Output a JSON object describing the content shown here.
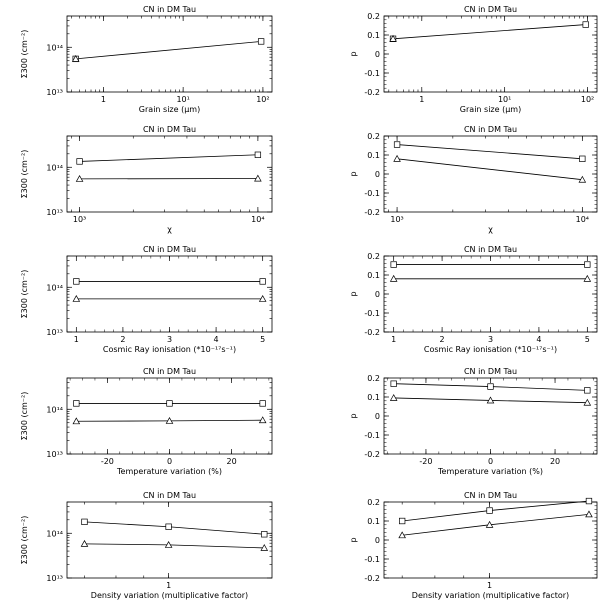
{
  "chart_data": [
    {
      "type": "line",
      "title": "CN in DM Tau",
      "xlabel": "Grain size (μm)",
      "ylabel": "Σ300 (cm⁻²)",
      "xscale": "log",
      "yscale": "log",
      "xlim": [
        0.35,
        130
      ],
      "ylim": [
        10000000000000.0,
        500000000000000.0
      ],
      "xticks": [
        {
          "v": 1,
          "label": "1"
        },
        {
          "v": 10,
          "label": "10¹"
        },
        {
          "v": 100,
          "label": "10²"
        }
      ],
      "yticks": [
        {
          "v": 10000000000000.0,
          "label": "10¹³"
        },
        {
          "v": 100000000000000.0,
          "label": "10¹⁴"
        }
      ],
      "series": [
        {
          "marker": "square",
          "points": [
            [
              0.45,
              55000000000000.0
            ],
            [
              95,
              135000000000000.0
            ]
          ]
        },
        {
          "marker": "triangle",
          "points": [
            [
              0.45,
              55000000000000.0
            ]
          ]
        }
      ]
    },
    {
      "type": "line",
      "title": "CN in DM Tau",
      "xlabel": "Grain size (μm)",
      "ylabel": "p",
      "xscale": "log",
      "yscale": "linear",
      "xlim": [
        0.35,
        130
      ],
      "ylim": [
        -0.2,
        0.2
      ],
      "xticks": [
        {
          "v": 1,
          "label": "1"
        },
        {
          "v": 10,
          "label": "10¹"
        },
        {
          "v": 100,
          "label": "10²"
        }
      ],
      "yticks": [
        {
          "v": -0.2,
          "label": "-0.2"
        },
        {
          "v": -0.1,
          "label": "-0.1"
        },
        {
          "v": 0,
          "label": "0"
        },
        {
          "v": 0.1,
          "label": "0.1"
        },
        {
          "v": 0.2,
          "label": "0.2"
        }
      ],
      "series": [
        {
          "marker": "square",
          "points": [
            [
              0.45,
              0.08
            ],
            [
              95,
              0.155
            ]
          ]
        },
        {
          "marker": "triangle",
          "points": [
            [
              0.45,
              0.08
            ]
          ]
        }
      ]
    },
    {
      "type": "line",
      "title": "CN in DM Tau",
      "xlabel": "χ",
      "ylabel": "Σ300 (cm⁻²)",
      "xscale": "log",
      "yscale": "log",
      "xlim": [
        850,
        12000
      ],
      "ylim": [
        10000000000000.0,
        500000000000000.0
      ],
      "xticks": [
        {
          "v": 1000,
          "label": "10³"
        },
        {
          "v": 10000,
          "label": "10⁴"
        }
      ],
      "yticks": [
        {
          "v": 10000000000000.0,
          "label": "10¹³"
        },
        {
          "v": 100000000000000.0,
          "label": "10¹⁴"
        }
      ],
      "series": [
        {
          "marker": "square",
          "points": [
            [
              1000,
              135000000000000.0
            ],
            [
              10000,
              190000000000000.0
            ]
          ]
        },
        {
          "marker": "triangle",
          "points": [
            [
              1000,
              55000000000000.0
            ],
            [
              10000,
              56000000000000.0
            ]
          ]
        }
      ]
    },
    {
      "type": "line",
      "title": "CN in DM Tau",
      "xlabel": "χ",
      "ylabel": "p",
      "xscale": "log",
      "yscale": "linear",
      "xlim": [
        850,
        12000
      ],
      "ylim": [
        -0.2,
        0.2
      ],
      "xticks": [
        {
          "v": 1000,
          "label": "10³"
        },
        {
          "v": 10000,
          "label": "10⁴"
        }
      ],
      "yticks": [
        {
          "v": -0.2,
          "label": "-0.2"
        },
        {
          "v": -0.1,
          "label": "-0.1"
        },
        {
          "v": 0,
          "label": "0"
        },
        {
          "v": 0.1,
          "label": "0.1"
        },
        {
          "v": 0.2,
          "label": "0.2"
        }
      ],
      "series": [
        {
          "marker": "square",
          "points": [
            [
              1000,
              0.155
            ],
            [
              10000,
              0.08
            ]
          ]
        },
        {
          "marker": "triangle",
          "points": [
            [
              1000,
              0.08
            ],
            [
              10000,
              -0.03
            ]
          ]
        }
      ]
    },
    {
      "type": "line",
      "title": "CN in DM Tau",
      "xlabel": "Cosmic Ray ionisation (*10⁻¹⁷s⁻¹)",
      "ylabel": "Σ300 (cm⁻²)",
      "xscale": "linear",
      "yscale": "log",
      "xlim": [
        0.8,
        5.2
      ],
      "ylim": [
        10000000000000.0,
        500000000000000.0
      ],
      "xticks": [
        {
          "v": 1,
          "label": "1"
        },
        {
          "v": 2,
          "label": "2"
        },
        {
          "v": 3,
          "label": "3"
        },
        {
          "v": 4,
          "label": "4"
        },
        {
          "v": 5,
          "label": "5"
        }
      ],
      "yticks": [
        {
          "v": 10000000000000.0,
          "label": "10¹³"
        },
        {
          "v": 100000000000000.0,
          "label": "10¹⁴"
        }
      ],
      "series": [
        {
          "marker": "square",
          "points": [
            [
              1,
              135000000000000.0
            ],
            [
              5,
              135000000000000.0
            ]
          ]
        },
        {
          "marker": "triangle",
          "points": [
            [
              1,
              55000000000000.0
            ],
            [
              5,
              55000000000000.0
            ]
          ]
        }
      ]
    },
    {
      "type": "line",
      "title": "CN in DM Tau",
      "xlabel": "Cosmic Ray ionisation (*10⁻¹⁷s⁻¹)",
      "ylabel": "p",
      "xscale": "linear",
      "yscale": "linear",
      "xlim": [
        0.8,
        5.2
      ],
      "ylim": [
        -0.2,
        0.2
      ],
      "xticks": [
        {
          "v": 1,
          "label": "1"
        },
        {
          "v": 2,
          "label": "2"
        },
        {
          "v": 3,
          "label": "3"
        },
        {
          "v": 4,
          "label": "4"
        },
        {
          "v": 5,
          "label": "5"
        }
      ],
      "yticks": [
        {
          "v": -0.2,
          "label": "-0.2"
        },
        {
          "v": -0.1,
          "label": "-0.1"
        },
        {
          "v": 0,
          "label": "0"
        },
        {
          "v": 0.1,
          "label": "0.1"
        },
        {
          "v": 0.2,
          "label": "0.2"
        }
      ],
      "series": [
        {
          "marker": "square",
          "points": [
            [
              1,
              0.155
            ],
            [
              5,
              0.155
            ]
          ]
        },
        {
          "marker": "triangle",
          "points": [
            [
              1,
              0.08
            ],
            [
              5,
              0.08
            ]
          ]
        }
      ]
    },
    {
      "type": "line",
      "title": "CN in DM Tau",
      "xlabel": "Temperature variation (%)",
      "ylabel": "Σ300 (cm⁻²)",
      "xscale": "linear",
      "yscale": "log",
      "xlim": [
        -33,
        33
      ],
      "ylim": [
        10000000000000.0,
        500000000000000.0
      ],
      "xticks": [
        {
          "v": -20,
          "label": "-20"
        },
        {
          "v": 0,
          "label": "0"
        },
        {
          "v": 20,
          "label": "20"
        }
      ],
      "yticks": [
        {
          "v": 10000000000000.0,
          "label": "10¹³"
        },
        {
          "v": 100000000000000.0,
          "label": "10¹⁴"
        }
      ],
      "series": [
        {
          "marker": "square",
          "points": [
            [
              -30,
              135000000000000.0
            ],
            [
              0,
              135000000000000.0
            ],
            [
              30,
              135000000000000.0
            ]
          ]
        },
        {
          "marker": "triangle",
          "points": [
            [
              -30,
              54000000000000.0
            ],
            [
              0,
              55000000000000.0
            ],
            [
              30,
              57000000000000.0
            ]
          ]
        }
      ]
    },
    {
      "type": "line",
      "title": "CN in DM Tau",
      "xlabel": "Temperature variation (%)",
      "ylabel": "p",
      "xscale": "linear",
      "yscale": "linear",
      "xlim": [
        -33,
        33
      ],
      "ylim": [
        -0.2,
        0.2
      ],
      "xticks": [
        {
          "v": -20,
          "label": "-20"
        },
        {
          "v": 0,
          "label": "0"
        },
        {
          "v": 20,
          "label": "20"
        }
      ],
      "yticks": [
        {
          "v": -0.2,
          "label": "-0.2"
        },
        {
          "v": -0.1,
          "label": "-0.1"
        },
        {
          "v": 0,
          "label": "0"
        },
        {
          "v": 0.1,
          "label": "0.1"
        },
        {
          "v": 0.2,
          "label": "0.2"
        }
      ],
      "series": [
        {
          "marker": "square",
          "points": [
            [
              -30,
              0.17
            ],
            [
              0,
              0.155
            ],
            [
              30,
              0.135
            ]
          ]
        },
        {
          "marker": "triangle",
          "points": [
            [
              -30,
              0.095
            ],
            [
              0,
              0.082
            ],
            [
              30,
              0.07
            ]
          ]
        }
      ]
    },
    {
      "type": "line",
      "title": "CN in DM Tau",
      "xlabel": "Density variation (multiplicative factor)",
      "ylabel": "Σ300 (cm⁻²)",
      "xscale": "log",
      "yscale": "log",
      "xlim": [
        0.65,
        1.55
      ],
      "ylim": [
        10000000000000.0,
        500000000000000.0
      ],
      "xticks": [
        {
          "v": 1,
          "label": "1"
        }
      ],
      "yticks": [
        {
          "v": 10000000000000.0,
          "label": "10¹³"
        },
        {
          "v": 100000000000000.0,
          "label": "10¹⁴"
        }
      ],
      "series": [
        {
          "marker": "square",
          "points": [
            [
              0.7,
              180000000000000.0
            ],
            [
              1,
              140000000000000.0
            ],
            [
              1.5,
              95000000000000.0
            ]
          ]
        },
        {
          "marker": "triangle",
          "points": [
            [
              0.7,
              58000000000000.0
            ],
            [
              1,
              55000000000000.0
            ],
            [
              1.5,
              47000000000000.0
            ]
          ]
        }
      ]
    },
    {
      "type": "line",
      "title": "CN in DM Tau",
      "xlabel": "Density variation (multiplicative factor)",
      "ylabel": "p",
      "xscale": "log",
      "yscale": "linear",
      "xlim": [
        0.65,
        1.55
      ],
      "ylim": [
        -0.2,
        0.2
      ],
      "xticks": [
        {
          "v": 1,
          "label": "1"
        }
      ],
      "yticks": [
        {
          "v": -0.2,
          "label": "-0.2"
        },
        {
          "v": -0.1,
          "label": "-0.1"
        },
        {
          "v": 0,
          "label": "0"
        },
        {
          "v": 0.1,
          "label": "0.1"
        },
        {
          "v": 0.2,
          "label": "0.2"
        }
      ],
      "series": [
        {
          "marker": "square",
          "points": [
            [
              0.7,
              0.1
            ],
            [
              1,
              0.155
            ],
            [
              1.5,
              0.205
            ]
          ]
        },
        {
          "marker": "triangle",
          "points": [
            [
              0.7,
              0.025
            ],
            [
              1,
              0.08
            ],
            [
              1.5,
              0.135
            ]
          ]
        }
      ]
    }
  ]
}
